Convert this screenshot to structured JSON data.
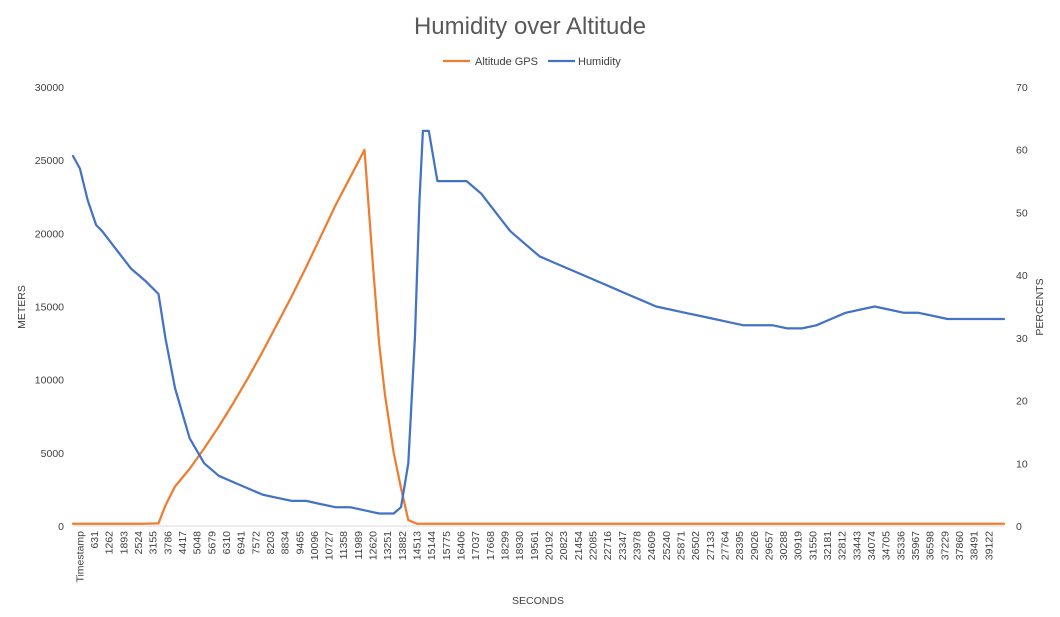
{
  "chart_data": {
    "type": "line",
    "title": "Humidity over Altitude",
    "xlabel": "SECONDS",
    "ylabel": "METERS",
    "y2label": "PERCENTS",
    "legend_position": "top",
    "grid": false,
    "ylim": [
      0,
      30000
    ],
    "y2lim": [
      0,
      70
    ],
    "yticks": [
      "0",
      "5000",
      "10000",
      "15000",
      "20000",
      "25000",
      "30000"
    ],
    "y2ticks": [
      "0",
      "10",
      "20",
      "30",
      "40",
      "50",
      "60",
      "70"
    ],
    "xlim": [
      0,
      40300
    ],
    "xticks": [
      "Timestamp",
      "631",
      "1262",
      "1893",
      "2524",
      "3155",
      "3786",
      "4417",
      "5048",
      "5679",
      "6310",
      "6941",
      "7572",
      "8203",
      "8834",
      "9465",
      "10096",
      "10727",
      "11358",
      "11989",
      "12620",
      "13251",
      "13882",
      "14513",
      "15144",
      "15775",
      "16406",
      "17037",
      "17668",
      "18299",
      "18930",
      "19561",
      "20192",
      "20823",
      "21454",
      "22085",
      "22716",
      "23347",
      "23978",
      "24609",
      "25240",
      "25871",
      "26502",
      "27133",
      "27764",
      "28395",
      "29026",
      "29657",
      "30288",
      "30919",
      "31550",
      "32181",
      "32812",
      "33443",
      "34074",
      "34705",
      "35336",
      "35967",
      "36598",
      "37229",
      "37860",
      "38491",
      "39122"
    ],
    "series": [
      {
        "name": "Altitude GPS",
        "axis": "left",
        "color": "#ED7D31",
        "x": [
          0,
          3000,
          3700,
          4000,
          4417,
          5048,
          5679,
          6310,
          6941,
          7572,
          8203,
          8834,
          9465,
          10096,
          10727,
          11358,
          11989,
          12620,
          13000,
          13251,
          13500,
          13882,
          14200,
          14513,
          14900,
          15144,
          20000,
          30000,
          40300
        ],
        "y": [
          150,
          150,
          180,
          1400,
          2700,
          3900,
          5300,
          6800,
          8400,
          10100,
          11900,
          13800,
          15700,
          17700,
          19800,
          21900,
          23800,
          25700,
          17500,
          12500,
          9000,
          5000,
          2600,
          400,
          150,
          150,
          150,
          150,
          150
        ]
      },
      {
        "name": "Humidity",
        "axis": "right",
        "color": "#4472C4",
        "x": [
          0,
          300,
          631,
          1000,
          1262,
          1893,
          2524,
          3155,
          3700,
          4000,
          4417,
          5048,
          5679,
          6310,
          6941,
          7572,
          8203,
          8834,
          9465,
          10096,
          10727,
          11358,
          11989,
          12620,
          13251,
          13882,
          14200,
          14513,
          14800,
          15000,
          15144,
          15400,
          15775,
          16406,
          17037,
          17668,
          18299,
          18930,
          19561,
          20192,
          20823,
          21454,
          22085,
          22716,
          23347,
          23978,
          24609,
          25240,
          25871,
          26502,
          27133,
          27764,
          28395,
          29026,
          29657,
          30288,
          30919,
          31550,
          32181,
          32812,
          33443,
          34074,
          34705,
          35336,
          35967,
          36598,
          37229,
          37860,
          38491,
          39122,
          39800,
          40300
        ],
        "y": [
          59,
          57,
          52,
          48,
          47,
          44,
          41,
          39,
          37,
          30,
          22,
          14,
          10,
          8,
          7,
          6,
          5,
          4.5,
          4,
          4,
          3.5,
          3,
          3,
          2.5,
          2,
          2,
          3,
          10,
          30,
          52,
          63,
          63,
          55,
          55,
          55,
          53,
          50,
          47,
          45,
          43,
          42,
          41,
          40,
          39,
          38,
          37,
          36,
          35,
          34.5,
          34,
          33.5,
          33,
          32.5,
          32,
          32,
          32,
          31.5,
          31.5,
          32,
          33,
          34,
          34.5,
          35,
          34.5,
          34,
          34,
          33.5,
          33,
          33,
          33,
          33,
          33
        ]
      }
    ]
  }
}
